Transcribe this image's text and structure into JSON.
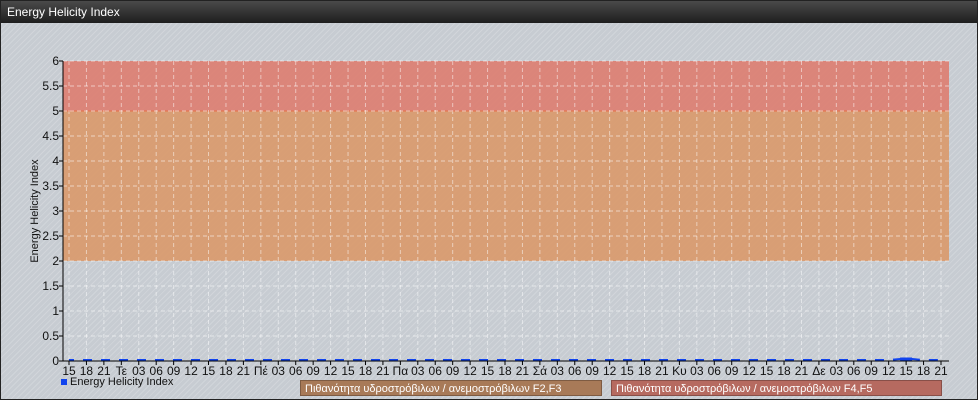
{
  "window_title": "Energy Helicity Index",
  "chart_data": {
    "type": "line",
    "title": "",
    "ylabel": "Energy Helicity Index",
    "xlabel": "",
    "ylim": [
      0,
      6
    ],
    "y_ticks": [
      "0",
      "0.5",
      "1",
      "1.5",
      "2",
      "2.5",
      "3",
      "3.5",
      "4",
      "4.5",
      "5",
      "5.5",
      "6"
    ],
    "categories": [
      "15",
      "18",
      "21",
      "Τε",
      "03",
      "06",
      "09",
      "12",
      "15",
      "18",
      "21",
      "Πέ",
      "03",
      "06",
      "09",
      "12",
      "15",
      "18",
      "21",
      "Πα",
      "03",
      "06",
      "09",
      "12",
      "15",
      "18",
      "21",
      "Σά",
      "03",
      "06",
      "09",
      "12",
      "15",
      "18",
      "21",
      "Κυ",
      "03",
      "06",
      "09",
      "12",
      "15",
      "18",
      "21",
      "Δε",
      "03",
      "06",
      "09",
      "12",
      "15",
      "18",
      "21"
    ],
    "series": [
      {
        "name": "Energy Helicity Index",
        "color": "#1144ee",
        "values": [
          0,
          0,
          0,
          0,
          0,
          0,
          0,
          0,
          0,
          0,
          0,
          0,
          0,
          0,
          0,
          0,
          0,
          0,
          0,
          0,
          0,
          0,
          0,
          0,
          0,
          0,
          0,
          0,
          0,
          0,
          0,
          0,
          0,
          0,
          0,
          0,
          0,
          0,
          0,
          0,
          0,
          0,
          0,
          0,
          0,
          0,
          0,
          0,
          0.03,
          0,
          0
        ]
      }
    ],
    "bands": [
      {
        "from": 2,
        "to": 5,
        "color": "#d99a6c",
        "label": "Πιθανότητα υδροστρόβιλων / ανεμοστρόβιλων F2,F3"
      },
      {
        "from": 5,
        "to": 6,
        "color": "#dc7f72",
        "label": "Πιθανότητα υδροστρόβιλων / ανεμοστρόβιλων F4,F5"
      }
    ],
    "grid": true,
    "legend": "bottom-left"
  }
}
